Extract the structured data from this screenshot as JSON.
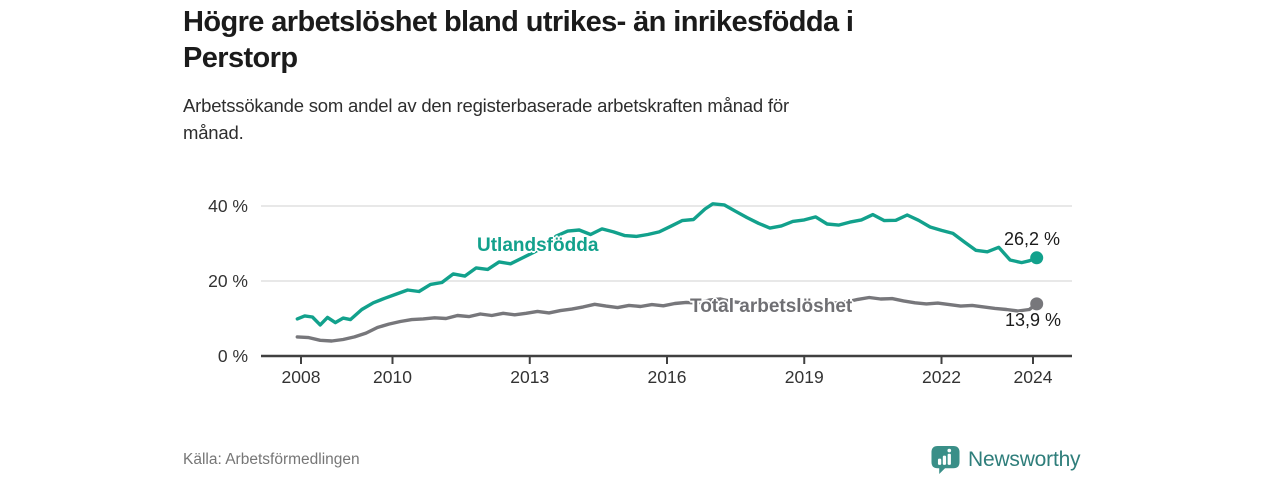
{
  "header": {
    "title_lines": [
      "Högre arbetslöshet bland utrikes- än inrikesfödda i",
      "Perstorp"
    ],
    "subtitle_lines": [
      "Arbetssökande som andel av den registerbaserade arbetskraften månad för",
      "månad."
    ]
  },
  "footer": {
    "source": "Källa: Arbetsförmedlingen",
    "brand": "Newsworthy",
    "brand_color": "#2f7e7b",
    "brand_icon": "speech-bubble-bar-chart"
  },
  "chart_data": {
    "type": "line",
    "unit": "%",
    "grid": "horizontal",
    "legend_position": "inline-labels",
    "x_axis": {
      "ticks": [
        2008,
        2010,
        2013,
        2016,
        2019,
        2022,
        2024
      ],
      "range": [
        2007.7,
        2024.9
      ]
    },
    "y_axis": {
      "range": [
        0,
        43
      ],
      "ticks": [
        {
          "value": 0,
          "label": "0 %"
        },
        {
          "value": 20,
          "label": "20 %"
        },
        {
          "value": 40,
          "label": "40 %"
        }
      ]
    },
    "style": {
      "grid_color": "#e0e0e0",
      "axis_color": "#404040",
      "tick_label_color": "#333333"
    },
    "series": [
      {
        "id": "utlandsfodda",
        "name": "Utlandsfödda",
        "color": "#12a18c",
        "end_value": 26.2,
        "end_value_label": "26,2 %",
        "points": [
          [
            2007.92,
            9.9
          ],
          [
            2008.08,
            10.7
          ],
          [
            2008.25,
            10.4
          ],
          [
            2008.42,
            8.3
          ],
          [
            2008.58,
            10.3
          ],
          [
            2008.75,
            8.9
          ],
          [
            2008.92,
            10.1
          ],
          [
            2009.08,
            9.7
          ],
          [
            2009.33,
            12.4
          ],
          [
            2009.58,
            14.2
          ],
          [
            2009.83,
            15.4
          ],
          [
            2010.08,
            16.5
          ],
          [
            2010.33,
            17.6
          ],
          [
            2010.58,
            17.2
          ],
          [
            2010.83,
            19.1
          ],
          [
            2011.08,
            19.6
          ],
          [
            2011.33,
            21.9
          ],
          [
            2011.58,
            21.3
          ],
          [
            2011.83,
            23.5
          ],
          [
            2012.08,
            23.1
          ],
          [
            2012.33,
            25.1
          ],
          [
            2012.58,
            24.6
          ],
          [
            2012.83,
            26.1
          ],
          [
            2013.08,
            27.6
          ],
          [
            2013.33,
            29.2
          ],
          [
            2013.58,
            32.0
          ],
          [
            2013.83,
            33.3
          ],
          [
            2014.08,
            33.6
          ],
          [
            2014.33,
            32.4
          ],
          [
            2014.58,
            33.9
          ],
          [
            2014.83,
            33.1
          ],
          [
            2015.08,
            32.1
          ],
          [
            2015.33,
            31.9
          ],
          [
            2015.58,
            32.4
          ],
          [
            2015.83,
            33.1
          ],
          [
            2016.08,
            34.6
          ],
          [
            2016.33,
            36.1
          ],
          [
            2016.58,
            36.4
          ],
          [
            2016.83,
            39.2
          ],
          [
            2017.0,
            40.6
          ],
          [
            2017.25,
            40.3
          ],
          [
            2017.5,
            38.6
          ],
          [
            2017.75,
            36.9
          ],
          [
            2018.0,
            35.4
          ],
          [
            2018.25,
            34.1
          ],
          [
            2018.5,
            34.7
          ],
          [
            2018.75,
            35.9
          ],
          [
            2019.0,
            36.3
          ],
          [
            2019.25,
            37.1
          ],
          [
            2019.5,
            35.2
          ],
          [
            2019.75,
            34.9
          ],
          [
            2020.0,
            35.7
          ],
          [
            2020.25,
            36.3
          ],
          [
            2020.5,
            37.7
          ],
          [
            2020.75,
            36.1
          ],
          [
            2021.0,
            36.2
          ],
          [
            2021.25,
            37.6
          ],
          [
            2021.5,
            36.2
          ],
          [
            2021.75,
            34.4
          ],
          [
            2022.0,
            33.5
          ],
          [
            2022.25,
            32.7
          ],
          [
            2022.5,
            30.4
          ],
          [
            2022.75,
            28.2
          ],
          [
            2023.0,
            27.8
          ],
          [
            2023.25,
            29.0
          ],
          [
            2023.5,
            25.6
          ],
          [
            2023.75,
            24.9
          ],
          [
            2023.92,
            25.4
          ],
          [
            2024.08,
            26.2
          ]
        ]
      },
      {
        "id": "total",
        "name": "Total arbetslöshet",
        "color": "#77777b",
        "end_value": 13.9,
        "end_value_label": "13,9 %",
        "points": [
          [
            2007.92,
            5.1
          ],
          [
            2008.17,
            4.9
          ],
          [
            2008.42,
            4.2
          ],
          [
            2008.67,
            4.0
          ],
          [
            2008.92,
            4.4
          ],
          [
            2009.17,
            5.1
          ],
          [
            2009.42,
            6.1
          ],
          [
            2009.67,
            7.6
          ],
          [
            2009.92,
            8.5
          ],
          [
            2010.17,
            9.2
          ],
          [
            2010.42,
            9.7
          ],
          [
            2010.67,
            9.9
          ],
          [
            2010.92,
            10.2
          ],
          [
            2011.17,
            10.0
          ],
          [
            2011.42,
            10.8
          ],
          [
            2011.67,
            10.5
          ],
          [
            2011.92,
            11.2
          ],
          [
            2012.17,
            10.8
          ],
          [
            2012.42,
            11.4
          ],
          [
            2012.67,
            11.0
          ],
          [
            2012.92,
            11.4
          ],
          [
            2013.17,
            11.9
          ],
          [
            2013.42,
            11.5
          ],
          [
            2013.67,
            12.1
          ],
          [
            2013.92,
            12.5
          ],
          [
            2014.17,
            13.1
          ],
          [
            2014.42,
            13.8
          ],
          [
            2014.67,
            13.3
          ],
          [
            2014.92,
            12.9
          ],
          [
            2015.17,
            13.5
          ],
          [
            2015.42,
            13.2
          ],
          [
            2015.67,
            13.7
          ],
          [
            2015.92,
            13.4
          ],
          [
            2016.17,
            14.0
          ],
          [
            2016.42,
            14.3
          ],
          [
            2016.67,
            14.1
          ],
          [
            2016.92,
            14.9
          ],
          [
            2017.17,
            15.2
          ],
          [
            2017.42,
            14.5
          ],
          [
            2017.67,
            14.1
          ],
          [
            2017.92,
            13.7
          ],
          [
            2018.17,
            14.0
          ],
          [
            2018.42,
            13.6
          ],
          [
            2018.67,
            13.9
          ],
          [
            2018.92,
            13.5
          ],
          [
            2019.17,
            13.9
          ],
          [
            2019.42,
            13.7
          ],
          [
            2019.67,
            14.1
          ],
          [
            2019.92,
            14.4
          ],
          [
            2020.17,
            15.1
          ],
          [
            2020.42,
            15.6
          ],
          [
            2020.67,
            15.2
          ],
          [
            2020.92,
            15.3
          ],
          [
            2021.17,
            14.7
          ],
          [
            2021.42,
            14.2
          ],
          [
            2021.67,
            13.9
          ],
          [
            2021.92,
            14.1
          ],
          [
            2022.17,
            13.7
          ],
          [
            2022.42,
            13.3
          ],
          [
            2022.67,
            13.5
          ],
          [
            2022.92,
            13.1
          ],
          [
            2023.17,
            12.7
          ],
          [
            2023.42,
            12.4
          ],
          [
            2023.67,
            12.0
          ],
          [
            2023.92,
            12.4
          ],
          [
            2024.08,
            13.9
          ]
        ]
      }
    ]
  }
}
